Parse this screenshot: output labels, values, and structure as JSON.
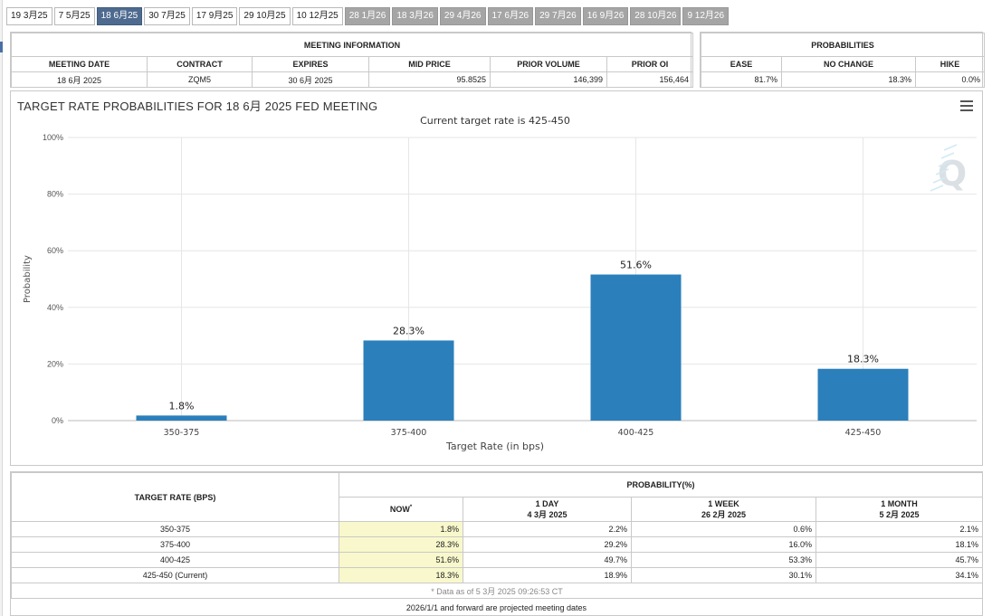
{
  "tabs": [
    {
      "label": "19 3月25",
      "state": "normal"
    },
    {
      "label": "7 5月25",
      "state": "normal"
    },
    {
      "label": "18 6月25",
      "state": "active"
    },
    {
      "label": "30 7月25",
      "state": "normal"
    },
    {
      "label": "17 9月25",
      "state": "normal"
    },
    {
      "label": "29 10月25",
      "state": "normal"
    },
    {
      "label": "10 12月25",
      "state": "normal"
    },
    {
      "label": "28 1月26",
      "state": "projected"
    },
    {
      "label": "18 3月26",
      "state": "projected"
    },
    {
      "label": "29 4月26",
      "state": "projected"
    },
    {
      "label": "17 6月26",
      "state": "projected"
    },
    {
      "label": "29 7月26",
      "state": "projected"
    },
    {
      "label": "16 9月26",
      "state": "projected"
    },
    {
      "label": "28 10月26",
      "state": "projected"
    },
    {
      "label": "9 12月26",
      "state": "projected"
    }
  ],
  "meeting_info": {
    "title": "MEETING INFORMATION",
    "headers": [
      "MEETING DATE",
      "CONTRACT",
      "EXPIRES",
      "MID PRICE",
      "PRIOR VOLUME",
      "PRIOR OI"
    ],
    "values": [
      "18 6月 2025",
      "ZQM5",
      "30 6月 2025",
      "95.8525",
      "146,399",
      "156,464"
    ]
  },
  "probabilities": {
    "title": "PROBABILITIES",
    "headers": [
      "EASE",
      "NO CHANGE",
      "HIKE"
    ],
    "values": [
      "81.7%",
      "18.3%",
      "0.0%"
    ]
  },
  "chart_data": {
    "type": "bar",
    "title": "TARGET RATE PROBABILITIES FOR 18 6月 2025 FED MEETING",
    "subtitle": "Current target rate is 425-450",
    "xlabel": "Target Rate (in bps)",
    "ylabel": "Probability",
    "categories": [
      "350-375",
      "375-400",
      "400-425",
      "425-450"
    ],
    "values": [
      1.8,
      28.3,
      51.6,
      18.3
    ],
    "data_labels": [
      "1.8%",
      "28.3%",
      "51.6%",
      "18.3%"
    ],
    "ylim": [
      0,
      100
    ],
    "yticks": [
      0,
      20,
      40,
      60,
      80,
      100
    ],
    "ytick_labels": [
      "0%",
      "20%",
      "40%",
      "60%",
      "80%",
      "100%"
    ],
    "grid": true,
    "bar_color": "#2b7fbb",
    "legend": "none"
  },
  "prob_table": {
    "col1_header": "TARGET RATE (BPS)",
    "group_header": "PROBABILITY(%)",
    "now_header": "NOW",
    "now_mark": "*",
    "period_headers": [
      {
        "name": "1 DAY",
        "date": "4 3月 2025"
      },
      {
        "name": "1 WEEK",
        "date": "26 2月 2025"
      },
      {
        "name": "1 MONTH",
        "date": "5 2月 2025"
      }
    ],
    "rows": [
      {
        "rate": "350-375",
        "now": "1.8%",
        "day": "2.2%",
        "week": "0.6%",
        "month": "2.1%"
      },
      {
        "rate": "375-400",
        "now": "28.3%",
        "day": "29.2%",
        "week": "16.0%",
        "month": "18.1%"
      },
      {
        "rate": "400-425",
        "now": "51.6%",
        "day": "49.7%",
        "week": "53.3%",
        "month": "45.7%"
      },
      {
        "rate": "425-450 (Current)",
        "now": "18.3%",
        "day": "18.9%",
        "week": "30.1%",
        "month": "34.1%"
      }
    ],
    "note": "* Data as of 5 3月 2025 09:26:53 CT",
    "footer": "2026/1/1 and forward are projected meeting dates"
  }
}
